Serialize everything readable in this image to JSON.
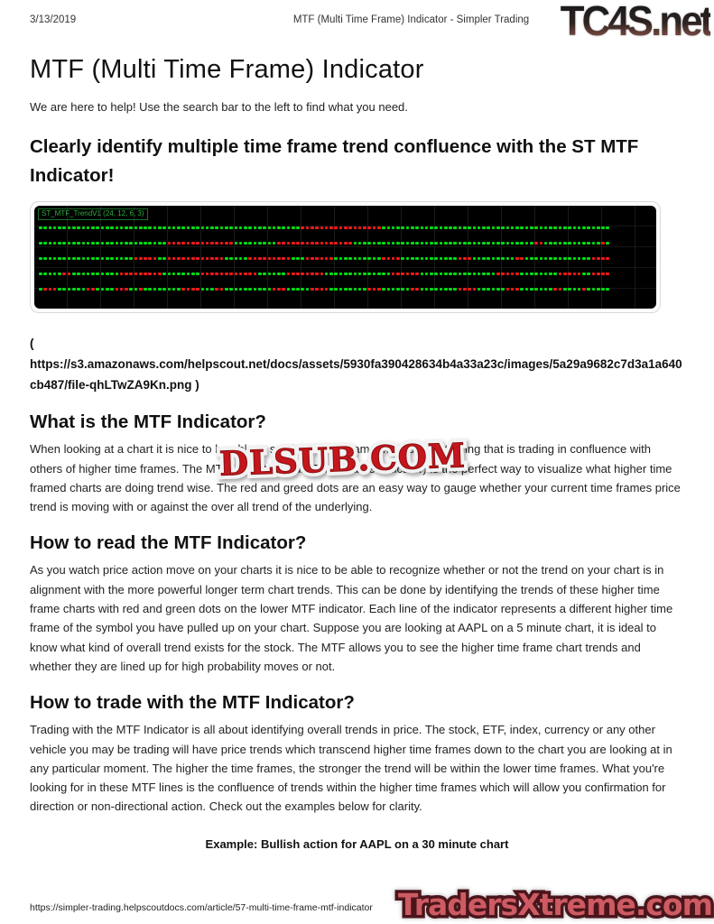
{
  "page": {
    "print_header": {
      "date": "3/13/2019",
      "title": "MTF (Multi Time Frame) Indicator - Simpler Trading"
    },
    "watermarks": {
      "top_right": "TC4S.net",
      "center": "DLSUB.COM",
      "bottom_right": "TradersXtreme.com"
    },
    "article": {
      "title": "MTF (Multi Time Frame) Indicator",
      "intro": "We are here to help! Use the search bar to the left to find what you need.",
      "headline": "Clearly identify multiple time frame trend confluence with the ST MTF Indicator!",
      "image_caption": "( https://s3.amazonaws.com/helpscout.net/docs/assets/5930fa390428634b4a33a23c/images/5a29a9682c7d3a1a640cb487/file-qhLTwZA9Kn.png )",
      "sections": [
        {
          "heading": "What is the MTF Indicator?",
          "body": "When looking at a chart it is nice to be able to see if the time frame that you are trading that is trading in confluence with others of higher time frames. The MTF indicator (Multi Time Frame indicator) is the perfect way to visualize what higher time framed charts are doing trend wise. The red and greed dots are an easy way to gauge whether your current time frames price trend is moving with or against the over all trend of the underlying."
        },
        {
          "heading": "How to read the MTF Indicator?",
          "body": "As you watch price action move on your charts it is nice to be able to recognize whether or not the trend on your chart is in alignment with the more powerful longer term chart trends. This can be done by identifying the trends of these higher time frame charts with red and green dots on the lower MTF indicator. Each line of the indicator represents a different higher time frame of the symbol you have pulled up on your chart. Suppose you are looking at AAPL on a 5 minute chart, it is ideal to know what kind of overall trend exists for the stock. The MTF allows you to see the higher time frame chart trends and whether they are lined up for high probability moves or not."
        },
        {
          "heading": "How to trade with the MTF Indicator?",
          "body": "Trading with the MTF Indicator is all about identifying overall trends in price. The stock, ETF, index, currency or any other vehicle you may be trading will have price trends which transcend higher time frames down to the chart you are looking at in any particular moment. The higher the time frames, the stronger the trend will be within the lower time frames. What you're looking for in these MTF lines is the confluence of trends within the higher time frames which will allow you confirmation for direction or non-directional action. Check out the examples below for clarity."
        }
      ],
      "example_caption": "Example: Bullish action for AAPL on a 30 minute chart"
    },
    "print_footer": {
      "url": "https://simpler-trading.helpscoutdocs.com/article/57-multi-time-frame-mtf-indicator"
    },
    "colors": {
      "dlsub_red": "#c4161c",
      "tc4s_rust": "#8a544a",
      "traders_red": "#cd5b63",
      "traders_outline": "#4a151b"
    }
  },
  "chart_data": {
    "type": "scatter",
    "title": "ST_MTF_TrendV1 (24, 12, 6, 3)",
    "description": "MTF indicator strip chart: 5 horizontal rows of dots on a black panel; green dots = up trend, red dots = down trend, one row per higher time frame",
    "legend_position": "top-left",
    "grid": true,
    "colors": {
      "up": "#00dd11",
      "down": "#f21818",
      "panel_bg": "#000000",
      "grid": "#1b1b1b",
      "label": "#2fae3e"
    },
    "run_encoding": "g = run of green dots, r = run of red dots, number = dot count",
    "rows": [
      {
        "label": "timeframe-row-1",
        "runs": "g55 r17 g48"
      },
      {
        "label": "timeframe-row-2",
        "runs": "g27 r14 g9 r16 g38 r2 g12 r1 g1"
      },
      {
        "label": "timeframe-row-3",
        "runs": "g20 r5 g2 r12 g5 r9 g3 r6 g10 r4 g12 r3 g9 r2 g14 r4"
      },
      {
        "label": "timeframe-row-4",
        "runs": "g5 r2 g10 r9 g8 r12 g6 r8 g14 r6 g16 r5 g8 r5 g2 r4"
      },
      {
        "label": "timeframe-row-5",
        "runs": "g1 r3 g6 r2 g4 r3 g2 r1 g8 r4 g3 r2 g10 r3 g5 r4 g8 r3 g6 r2 g8 r4 g6 r3 g7 r2 g4 r1 g5"
      }
    ]
  }
}
